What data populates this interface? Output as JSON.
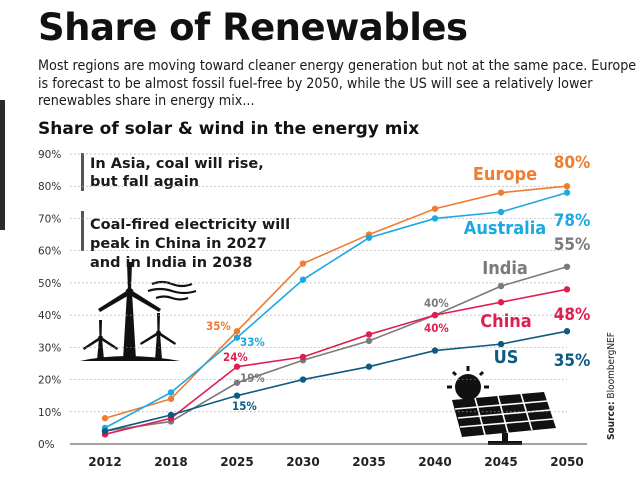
{
  "header": {
    "title": "Share of Renewables",
    "subtitle": "Most regions are moving toward cleaner energy generation but not at the same pace. Europe is forecast to be almost fossil fuel-free by 2050, while the US will see a relatively lower renewables share in energy mix...",
    "chart_title": "Share of solar & wind in the energy mix"
  },
  "source": {
    "prefix": "Source:",
    "name": "BloombergNEF"
  },
  "annotations": {
    "asia_lines": [
      "In Asia, coal will rise,",
      "but fall again"
    ],
    "china_india_lines": [
      "Coal-fired electricity will",
      "peak in China in 2027",
      "and in India in 2038"
    ]
  },
  "icons": {
    "left": "wind-turbine-icon",
    "right": "solar-panel-icon"
  },
  "colors": {
    "Europe": "#ef7d31",
    "Australia": "#1ca9e1",
    "India": "#7a7a7a",
    "China": "#e01f4f",
    "US": "#0d5b80"
  },
  "chart_data": {
    "type": "line",
    "title": "Share of solar & wind in the energy mix",
    "xlabel": "",
    "ylabel": "",
    "x": [
      "2012",
      "2018",
      "2025",
      "2030",
      "2035",
      "2040",
      "2045",
      "2050"
    ],
    "ylim": [
      0,
      90
    ],
    "yticks": [
      "0%",
      "10%",
      "20%",
      "30%",
      "40%",
      "50%",
      "60%",
      "70%",
      "80%",
      "90%"
    ],
    "grid": false,
    "series": [
      {
        "name": "Europe",
        "values": [
          8,
          14,
          35,
          56,
          65,
          73,
          78,
          80
        ]
      },
      {
        "name": "Australia",
        "values": [
          5,
          16,
          33,
          51,
          64,
          70,
          72,
          78
        ]
      },
      {
        "name": "India",
        "values": [
          4,
          7,
          19,
          26,
          32,
          40,
          49,
          55
        ]
      },
      {
        "name": "China",
        "values": [
          3,
          8,
          24,
          27,
          34,
          40,
          44,
          48
        ]
      },
      {
        "name": "US",
        "values": [
          4,
          9,
          15,
          20,
          24,
          29,
          31,
          35
        ]
      }
    ],
    "data_labels": [
      {
        "series": "Europe",
        "x": "2025",
        "text": "35%"
      },
      {
        "series": "Australia",
        "x": "2025",
        "text": "33%"
      },
      {
        "series": "China",
        "x": "2025",
        "text": "24%"
      },
      {
        "series": "India",
        "x": "2025",
        "text": "19%"
      },
      {
        "series": "US",
        "x": "2025",
        "text": "15%"
      },
      {
        "series": "India",
        "x": "2040",
        "text": "40%"
      },
      {
        "series": "China",
        "x": "2040",
        "text": "40%"
      },
      {
        "series": "Europe",
        "x": "2050",
        "text": "80%"
      },
      {
        "series": "Australia",
        "x": "2050",
        "text": "78%"
      },
      {
        "series": "India",
        "x": "2050",
        "text": "55%"
      },
      {
        "series": "China",
        "x": "2050",
        "text": "48%"
      },
      {
        "series": "US",
        "x": "2050",
        "text": "35%"
      }
    ]
  }
}
